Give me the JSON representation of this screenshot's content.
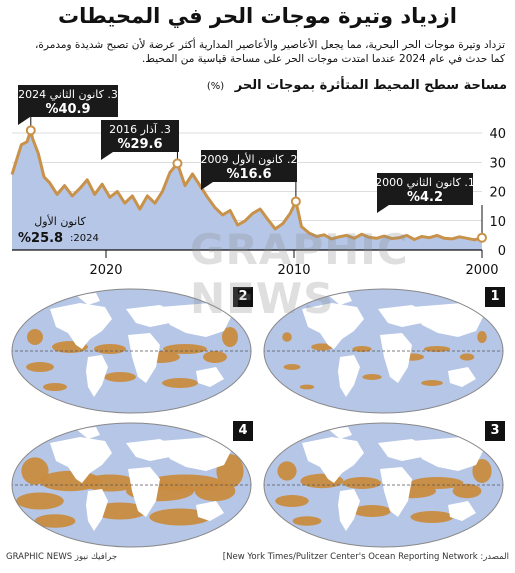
{
  "header": {
    "title": "ازدياد وتيرة موجات الحر في المحيطات",
    "subtitle_line1": "تزداد وتيرة موجات الحر البحرية، مما يجعل الأعاصير والأعاصير المدارية أكثر عرضة لأن تصبح شديدة ومدمرة،",
    "subtitle_line2": "كما حدث في عام 2024 عندما امتدت موجات الحر على مساحة قياسية من المحيط."
  },
  "colors": {
    "fill": "#b6c6e6",
    "line": "#c8924a",
    "ocean": "#b6c6e6",
    "heat": "#c98c40",
    "callout": "#1a1a1a"
  },
  "chart_data": {
    "type": "area",
    "title": "مساحة سطح المحيط المتأثرة بموجات الحر",
    "ylabel_unit": "(%)",
    "ylim": [
      0,
      40
    ],
    "yticks": [
      "0",
      "10",
      "20",
      "30",
      "40"
    ],
    "x_reversed": true,
    "xlim": [
      2000.0,
      2025.0
    ],
    "xticks": [
      {
        "value": 2000,
        "label": "2000"
      },
      {
        "value": 2010,
        "label": "2010"
      },
      {
        "value": 2020,
        "label": "2020"
      }
    ],
    "x": [
      2000.0,
      2000.4,
      2000.8,
      2001.2,
      2001.6,
      2002.0,
      2002.4,
      2002.8,
      2003.2,
      2003.6,
      2004.0,
      2004.4,
      2004.8,
      2005.2,
      2005.6,
      2006.0,
      2006.4,
      2006.8,
      2007.2,
      2007.6,
      2008.0,
      2008.4,
      2008.8,
      2009.2,
      2009.6,
      2009.9,
      2010.2,
      2010.6,
      2011.0,
      2011.4,
      2011.8,
      2012.2,
      2012.6,
      2013.0,
      2013.4,
      2013.8,
      2014.2,
      2014.6,
      2015.0,
      2015.4,
      2015.8,
      2016.2,
      2016.6,
      2017.0,
      2017.4,
      2017.8,
      2018.2,
      2018.6,
      2019.0,
      2019.4,
      2019.8,
      2020.2,
      2020.6,
      2021.0,
      2021.4,
      2021.8,
      2022.2,
      2022.6,
      2023.0,
      2023.3,
      2023.6,
      2023.9,
      2024.0,
      2024.2,
      2024.5,
      2024.8,
      2025.0
    ],
    "y": [
      4.2,
      3.5,
      4.0,
      4.5,
      3.8,
      4.0,
      5.0,
      4.2,
      4.6,
      3.6,
      5.0,
      4.2,
      3.9,
      4.8,
      4.0,
      4.3,
      5.4,
      4.0,
      5.0,
      4.5,
      3.8,
      5.2,
      4.6,
      5.8,
      8.0,
      16.6,
      12.5,
      9.0,
      7.2,
      10.5,
      14.0,
      12.5,
      10.0,
      8.5,
      13.5,
      12.0,
      14.5,
      18.0,
      22.0,
      26.0,
      22.0,
      29.6,
      26.5,
      20.0,
      16.0,
      18.5,
      14.0,
      18.5,
      16.0,
      20.0,
      18.0,
      22.5,
      19.0,
      24.0,
      21.0,
      18.5,
      22.0,
      19.0,
      23.0,
      25.0,
      33.0,
      38.0,
      40.9,
      37.0,
      36.0,
      30.0,
      25.8
    ],
    "annotations": [
      {
        "num": "1.",
        "date": "كانون الثاني 2000",
        "value": "%4.2",
        "x": 2000.0,
        "y": 4.2
      },
      {
        "num": "2.",
        "date": "كانون الأول 2009",
        "value": "%16.6",
        "x": 2009.9,
        "y": 16.6
      },
      {
        "num": "3.",
        "date": "آذار 2016",
        "value": "%29.6",
        "x": 2016.2,
        "y": 29.6
      },
      {
        "num": "3.",
        "date": "كانون الثاني 2024",
        "value": "%40.9",
        "x": 2024.0,
        "y": 40.9
      }
    ],
    "end_label": {
      "line1": "كانون الأول",
      "line2_year": ":2024",
      "value": "%25.8"
    }
  },
  "maps": [
    {
      "num": "1"
    },
    {
      "num": "2"
    },
    {
      "num": "3"
    },
    {
      "num": "4"
    }
  ],
  "footer": {
    "source": "المصدر: New York Times/Pulitzer Center's Ocean Reporting Network]",
    "credit": "GRAPHIC NEWS جرافيك نيوز"
  },
  "watermark": "GRAPHIC NEWS"
}
